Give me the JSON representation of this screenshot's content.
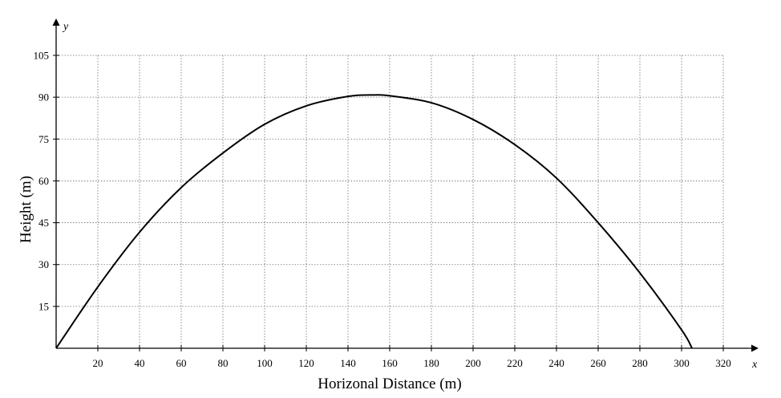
{
  "chart_data": {
    "type": "line",
    "xlabel": "Horizonal Distance (m)",
    "ylabel": "Height (m)",
    "x_axis_letter": "x",
    "y_axis_letter": "y",
    "xlim": [
      0,
      320
    ],
    "ylim": [
      0,
      105
    ],
    "x_ticks": [
      20,
      40,
      60,
      80,
      100,
      120,
      140,
      160,
      180,
      200,
      220,
      240,
      260,
      280,
      300,
      320
    ],
    "y_ticks": [
      15,
      30,
      45,
      60,
      75,
      90,
      105
    ],
    "grid": true,
    "series": [
      {
        "x": [
          0,
          20,
          40,
          60,
          80,
          100,
          120,
          140,
          152.5,
          160,
          180,
          200,
          220,
          240,
          260,
          280,
          300,
          305
        ],
        "y": [
          0,
          22.0,
          41.6,
          57.6,
          70.0,
          80.3,
          86.9,
          90.3,
          90.8,
          90.5,
          88.0,
          82.0,
          73.0,
          61.0,
          45.0,
          27.0,
          6.6,
          0
        ]
      }
    ]
  }
}
